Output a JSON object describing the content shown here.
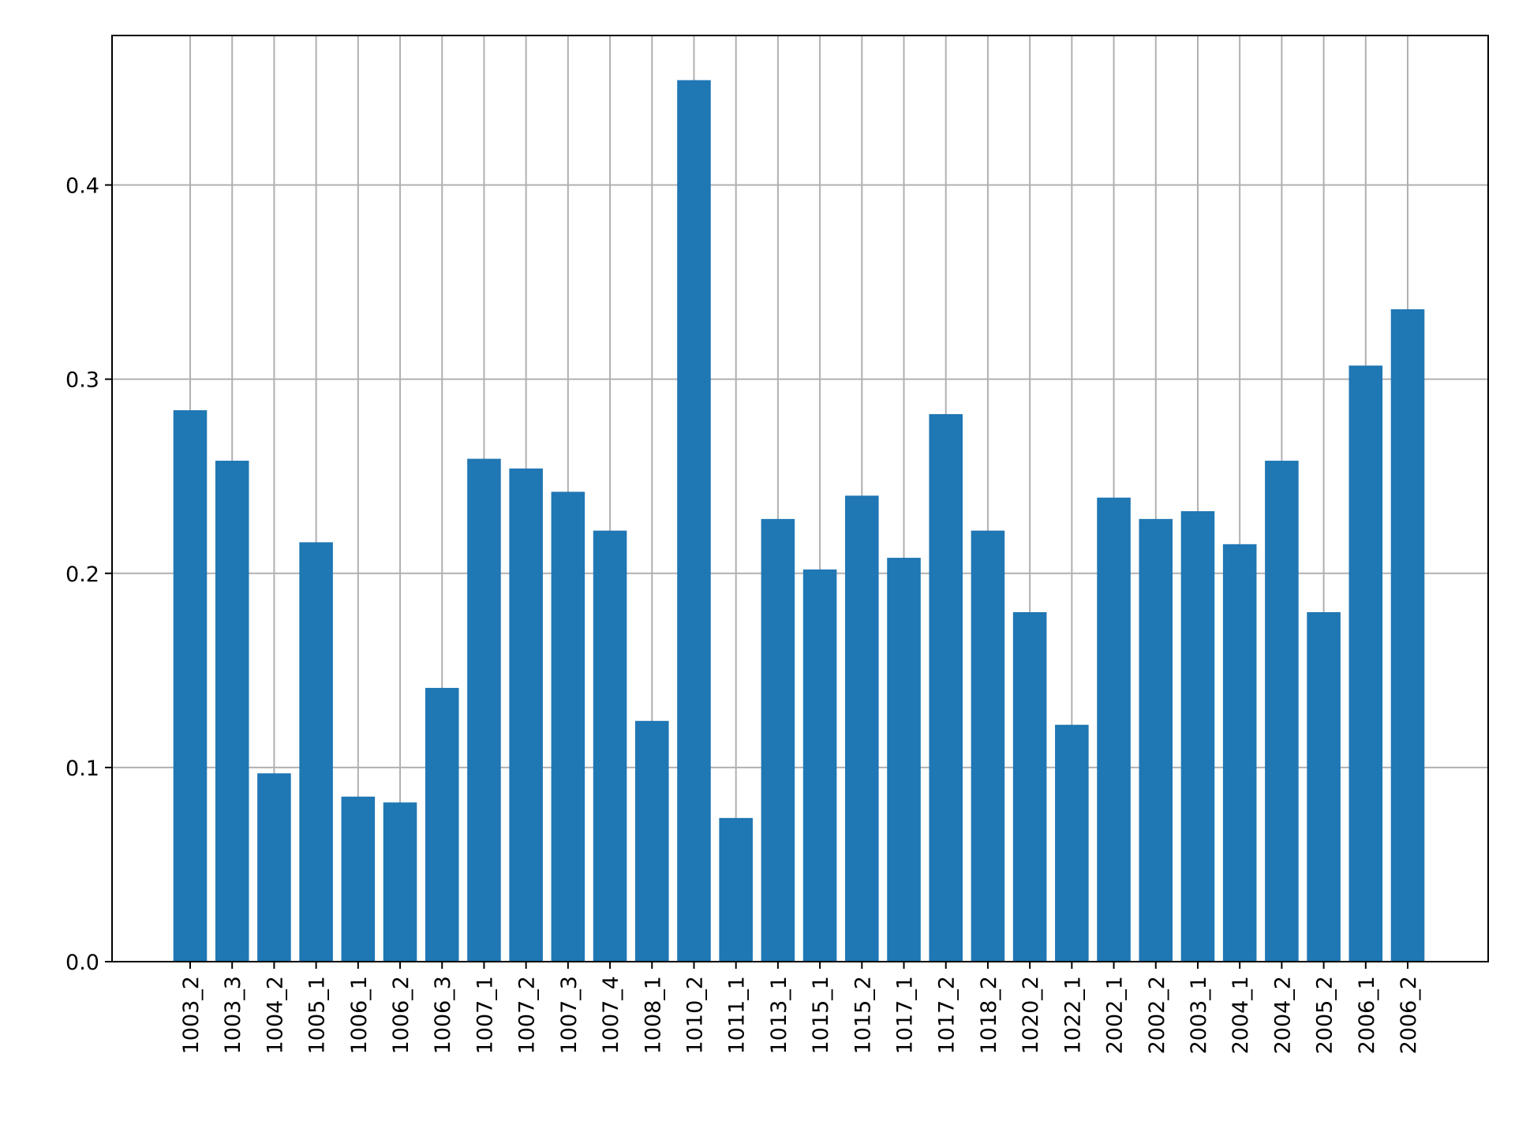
{
  "chart_data": {
    "type": "bar",
    "title": "",
    "xlabel": "",
    "ylabel": "",
    "categories": [
      "1003_2",
      "1003_3",
      "1004_2",
      "1005_1",
      "1006_1",
      "1006_2",
      "1006_3",
      "1007_1",
      "1007_2",
      "1007_3",
      "1007_4",
      "1008_1",
      "1010_2",
      "1011_1",
      "1013_1",
      "1015_1",
      "1015_2",
      "1017_1",
      "1017_2",
      "1018_2",
      "1020_2",
      "1022_1",
      "2002_1",
      "2002_2",
      "2003_1",
      "2004_1",
      "2004_2",
      "2005_2",
      "2006_1",
      "2006_2"
    ],
    "values": [
      0.284,
      0.258,
      0.097,
      0.216,
      0.085,
      0.082,
      0.141,
      0.259,
      0.254,
      0.242,
      0.222,
      0.124,
      0.454,
      0.074,
      0.228,
      0.202,
      0.24,
      0.208,
      0.282,
      0.222,
      0.18,
      0.122,
      0.239,
      0.228,
      0.232,
      0.215,
      0.258,
      0.18,
      0.307,
      0.336
    ],
    "ylim": [
      0,
      0.477
    ],
    "yticks": [
      0.0,
      0.1,
      0.2,
      0.3,
      0.4
    ],
    "ytick_labels": [
      "0.0",
      "0.1",
      "0.2",
      "0.3",
      "0.4"
    ],
    "grid": true,
    "bar_color": "#1f77b4",
    "grid_color": "#b0b0b0"
  }
}
